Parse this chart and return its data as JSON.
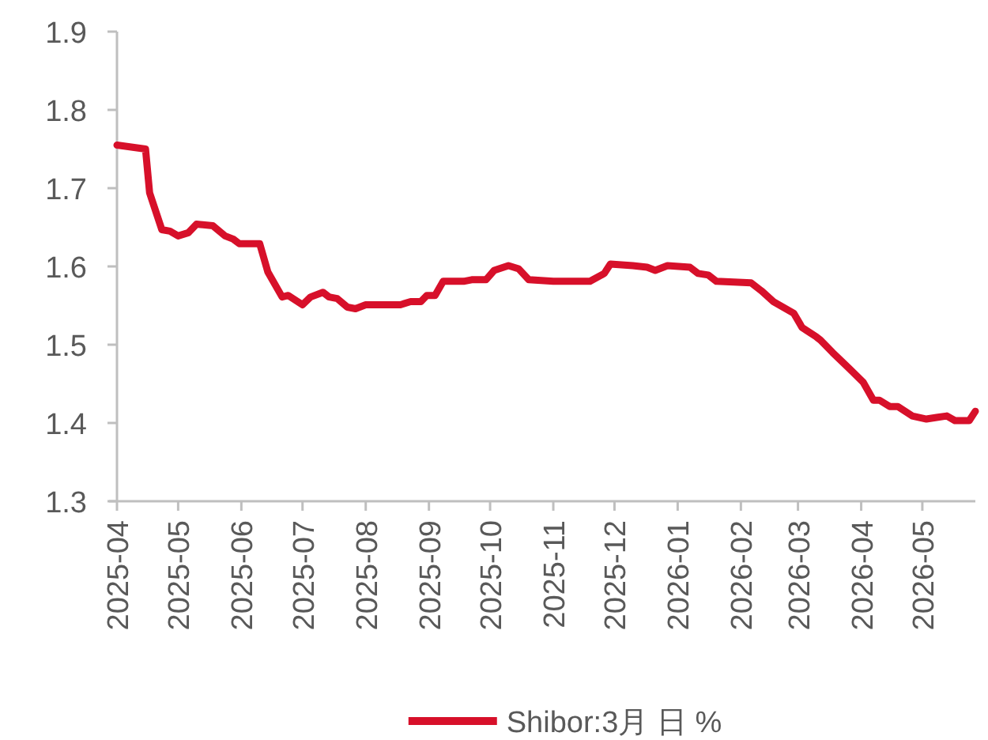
{
  "chart_data": {
    "type": "line",
    "x": [
      "2025-04-01",
      "2025-04-15",
      "2025-04-17",
      "2025-04-23",
      "2025-04-27",
      "2025-05-01",
      "2025-05-06",
      "2025-05-10",
      "2025-05-18",
      "2025-05-24",
      "2025-05-28",
      "2025-05-31",
      "2025-06-10",
      "2025-06-14",
      "2025-06-21",
      "2025-06-24",
      "2025-07-01",
      "2025-07-05",
      "2025-07-11",
      "2025-07-14",
      "2025-07-18",
      "2025-07-23",
      "2025-07-27",
      "2025-08-01",
      "2025-08-18",
      "2025-08-23",
      "2025-08-28",
      "2025-08-31",
      "2025-09-04",
      "2025-09-08",
      "2025-09-18",
      "2025-09-22",
      "2025-09-29",
      "2025-10-03",
      "2025-10-10",
      "2025-10-15",
      "2025-10-20",
      "2025-11-01",
      "2025-11-19",
      "2025-11-26",
      "2025-11-29",
      "2025-12-10",
      "2025-12-17",
      "2025-12-21",
      "2025-12-27",
      "2026-01-07",
      "2026-01-11",
      "2026-01-16",
      "2026-01-20",
      "2026-02-06",
      "2026-02-11",
      "2026-02-17",
      "2026-02-27",
      "2026-03-03",
      "2026-03-10",
      "2026-03-12",
      "2026-03-18",
      "2026-03-26",
      "2026-04-02",
      "2026-04-07",
      "2026-04-10",
      "2026-04-15",
      "2026-04-19",
      "2026-04-26",
      "2026-05-03",
      "2026-05-08",
      "2026-05-13",
      "2026-05-17",
      "2026-05-24",
      "2026-05-27"
    ],
    "series": [
      {
        "name": "Shibor:3月 日 %",
        "color": "#d7102a",
        "values": [
          1.755,
          1.75,
          1.694,
          1.647,
          1.645,
          1.639,
          1.643,
          1.654,
          1.652,
          1.639,
          1.635,
          1.629,
          1.629,
          1.593,
          1.561,
          1.563,
          1.551,
          1.561,
          1.567,
          1.561,
          1.559,
          1.548,
          1.546,
          1.551,
          1.551,
          1.555,
          1.555,
          1.563,
          1.563,
          1.581,
          1.581,
          1.583,
          1.583,
          1.595,
          1.601,
          1.597,
          1.583,
          1.581,
          1.581,
          1.591,
          1.603,
          1.601,
          1.599,
          1.595,
          1.601,
          1.599,
          1.591,
          1.589,
          1.581,
          1.579,
          1.569,
          1.555,
          1.54,
          1.522,
          1.51,
          1.506,
          1.49,
          1.47,
          1.452,
          1.429,
          1.429,
          1.421,
          1.421,
          1.409,
          1.405,
          1.407,
          1.409,
          1.403,
          1.403,
          1.415
        ]
      }
    ],
    "xlim": [
      "2025-04-01",
      "2026-05-27"
    ],
    "xticks": [
      "2025-04",
      "2025-05",
      "2025-06",
      "2025-07",
      "2025-08",
      "2025-09",
      "2025-10",
      "2025-11",
      "2025-12",
      "2026-01",
      "2026-02",
      "2026-03",
      "2026-04",
      "2026-05"
    ],
    "ylim": [
      1.3,
      1.9
    ],
    "yticks": [
      1.3,
      1.4,
      1.5,
      1.6,
      1.7,
      1.8,
      1.9
    ],
    "grid": false,
    "legend": "bottom",
    "marker": "none",
    "line_style": "solid"
  }
}
